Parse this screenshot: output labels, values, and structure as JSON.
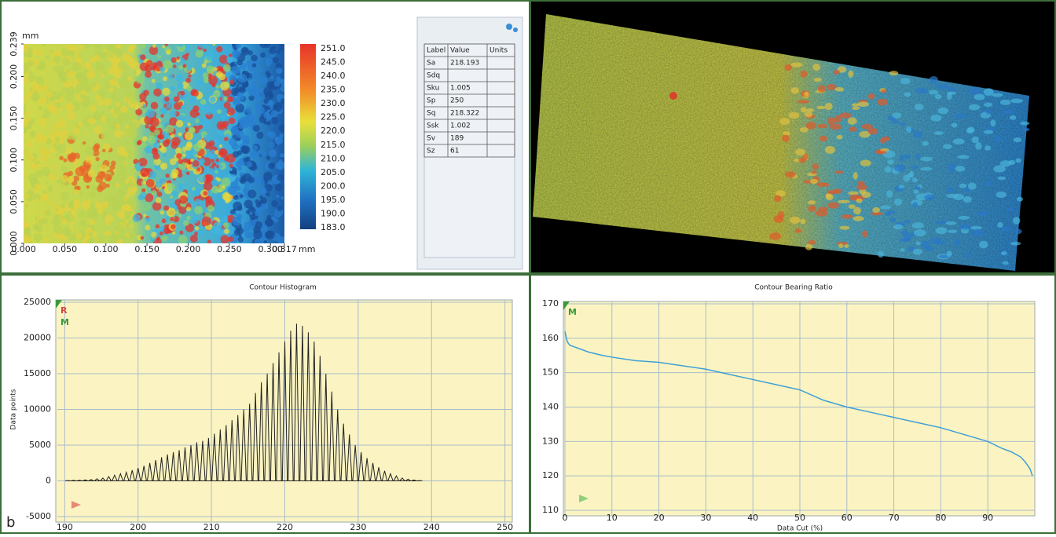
{
  "panel_label": "b",
  "height_map": {
    "y_unit": "mm",
    "x_unit": "mm",
    "xlim": [
      0,
      0.317
    ],
    "ylim": [
      0,
      0.239
    ],
    "xticks": [
      {
        "value": 0,
        "label": "0.000"
      },
      {
        "value": 0.05,
        "label": "0.050"
      },
      {
        "value": 0.1,
        "label": "0.100"
      },
      {
        "value": 0.15,
        "label": "0.150"
      },
      {
        "value": 0.2,
        "label": "0.200"
      },
      {
        "value": 0.25,
        "label": "0.250"
      },
      {
        "value": 0.3,
        "label": "0.300"
      },
      {
        "value": 0.317,
        "label": "0.317"
      }
    ],
    "yticks": [
      {
        "value": 0,
        "label": "0.000"
      },
      {
        "value": 0.05,
        "label": "0.050"
      },
      {
        "value": 0.1,
        "label": "0.100"
      },
      {
        "value": 0.15,
        "label": "0.150"
      },
      {
        "value": 0.2,
        "label": "0.200"
      },
      {
        "value": 0.239,
        "label": "0.239"
      }
    ],
    "colorbar_labels": [
      "251.0",
      "245.0",
      "240.0",
      "235.0",
      "230.0",
      "225.0",
      "220.0",
      "215.0",
      "210.0",
      "205.0",
      "200.0",
      "195.0",
      "190.0",
      "183.0"
    ]
  },
  "table": {
    "columns": [
      "Label",
      "Value",
      "Units"
    ],
    "rows": [
      {
        "label": "Sa",
        "value": "218.193"
      },
      {
        "label": "Sdq"
      },
      {
        "label": "Sku",
        "value": "1.005"
      },
      {
        "label": "Sp",
        "value": "250"
      },
      {
        "label": "Sq",
        "value": "218.322"
      },
      {
        "label": "Ssk",
        "value": "1.002"
      },
      {
        "label": "Sv",
        "value": "189"
      },
      {
        "label": "Sz",
        "value": "61"
      }
    ]
  },
  "chart_data": [
    {
      "type": "spike",
      "title": "Contour Histogram",
      "y_label": "Data points",
      "markers": [
        "R",
        "M"
      ],
      "color": "#222222",
      "grid": true,
      "xlim": [
        189,
        251
      ],
      "ylim": [
        -5000,
        25000
      ],
      "xticks": [
        190,
        200,
        210,
        220,
        230,
        240,
        250
      ],
      "yticks": [
        -5000,
        0,
        5000,
        10000,
        15000,
        20000,
        25000
      ],
      "x": [
        190.4,
        191.2,
        192.0,
        192.8,
        193.6,
        194.4,
        195.2,
        196.0,
        196.8,
        197.6,
        198.4,
        199.2,
        200.0,
        200.8,
        201.6,
        202.4,
        203.2,
        204.0,
        204.8,
        205.6,
        206.4,
        207.2,
        208.0,
        208.8,
        209.6,
        210.4,
        211.2,
        212.0,
        212.8,
        213.6,
        214.4,
        215.2,
        216.0,
        216.8,
        217.6,
        218.4,
        219.2,
        220.0,
        220.8,
        221.6,
        222.4,
        223.2,
        224.0,
        224.8,
        225.6,
        226.4,
        227.2,
        228.0,
        228.8,
        229.6,
        230.4,
        231.2,
        232.0,
        232.8,
        233.6,
        234.4,
        235.2,
        236.0,
        236.8,
        237.6,
        238.4
      ],
      "values": [
        50,
        80,
        100,
        150,
        200,
        300,
        400,
        600,
        800,
        1000,
        1200,
        1500,
        1800,
        2100,
        2500,
        2900,
        3300,
        3700,
        4000,
        4300,
        4700,
        5000,
        5400,
        5600,
        6000,
        6600,
        7200,
        7800,
        8500,
        9200,
        10000,
        10800,
        12300,
        13800,
        15000,
        16500,
        18000,
        19500,
        21000,
        22000,
        21700,
        20800,
        19500,
        17500,
        15000,
        12500,
        10000,
        8000,
        6500,
        5000,
        4000,
        3200,
        2500,
        1900,
        1400,
        1000,
        700,
        400,
        250,
        120,
        50
      ]
    },
    {
      "type": "line",
      "title": "Contour Bearing Ratio",
      "x_label": "Data Cut (%)",
      "markers": [
        "M"
      ],
      "color": "#3f9fd6",
      "grid": true,
      "xlim": [
        0,
        100
      ],
      "ylim": [
        110,
        170
      ],
      "xticks": [
        0,
        10,
        20,
        30,
        40,
        50,
        60,
        70,
        80,
        90
      ],
      "yticks": [
        110,
        120,
        130,
        140,
        150,
        160,
        170
      ],
      "x": [
        0,
        0.5,
        1,
        2,
        3,
        5,
        8,
        10,
        15,
        20,
        25,
        30,
        35,
        40,
        45,
        50,
        55,
        60,
        65,
        70,
        75,
        80,
        85,
        90,
        93,
        95,
        97,
        98,
        99,
        99.5
      ],
      "values": [
        162,
        159,
        158,
        157.5,
        157,
        156,
        155,
        154.5,
        153.5,
        153,
        152,
        151,
        149.5,
        148,
        146.5,
        145,
        142,
        140,
        138.5,
        137,
        135.5,
        134,
        132,
        130,
        128,
        127,
        125.5,
        124,
        122,
        120
      ]
    }
  ]
}
